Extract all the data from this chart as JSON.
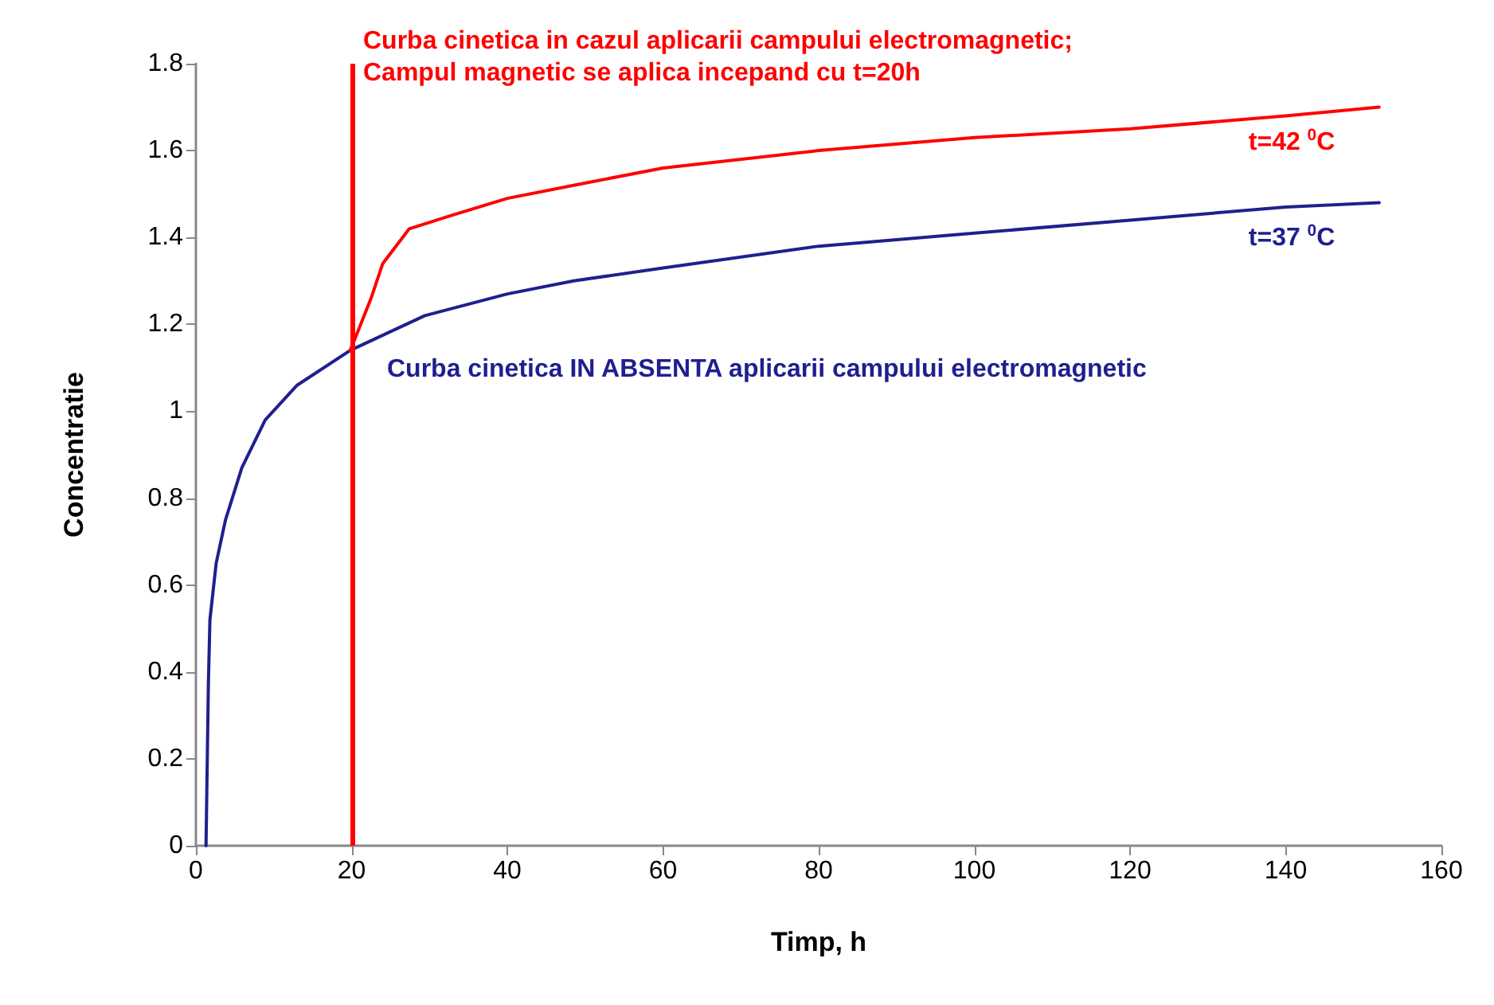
{
  "chart_data": {
    "type": "line",
    "xlabel": "Timp, h",
    "ylabel": "Concentratie",
    "xlim": [
      0,
      160
    ],
    "xticks": [
      0,
      20,
      40,
      60,
      80,
      100,
      120,
      140,
      160
    ],
    "ylim": [
      0,
      1.8
    ],
    "yticks": [
      0,
      0.2,
      0.4,
      0.6,
      0.8,
      1,
      1.2,
      1.4,
      1.6,
      1.8
    ],
    "grid": false,
    "legend": false,
    "marker": "none",
    "line_style": "solid",
    "series": [
      {
        "name": "t=37 $^{0}$C",
        "color": "#1f1f8f",
        "x": [
          1.3,
          1.6,
          1.8,
          2.6,
          3.8,
          5.9,
          8.9,
          13,
          19.8,
          29.4,
          40,
          48.5,
          60,
          80,
          100,
          120,
          140,
          152
        ],
        "values": [
          0,
          0.37,
          0.52,
          0.65,
          0.75,
          0.87,
          0.98,
          1.06,
          1.14,
          1.22,
          1.27,
          1.3,
          1.33,
          1.38,
          1.41,
          1.44,
          1.47,
          1.48
        ]
      },
      {
        "name": "t=42 $^{0}$C",
        "color": "#ff0000",
        "x": [
          19.8,
          20.5,
          22.5,
          24,
          27.4,
          32.7,
          40,
          48.5,
          60,
          80,
          100,
          120,
          140,
          152
        ],
        "values": [
          1.14,
          1.17,
          1.26,
          1.34,
          1.42,
          1.45,
          1.49,
          1.52,
          1.56,
          1.6,
          1.63,
          1.65,
          1.68,
          1.7
        ]
      }
    ],
    "ref_lines": [
      {
        "axis": "x",
        "value": 20,
        "color": "#ff0000"
      }
    ],
    "annotations": [
      "Curba cinetica in cazul aplicarii campului electromagnetic;\nCampul magnetic se aplica incepand cu t=20h",
      "Curba cinetica IN ABSENTA aplicarii campului electromagnetic"
    ]
  }
}
